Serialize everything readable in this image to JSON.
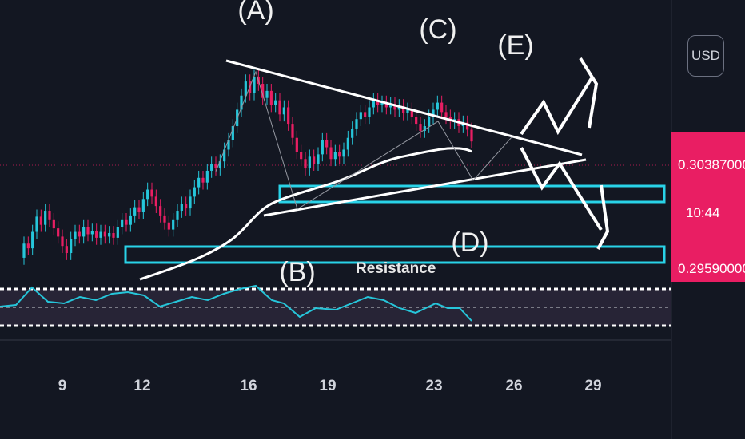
{
  "chart_data": {
    "type": "candlestick",
    "x_ticks": [
      "9",
      "12",
      "16",
      "19",
      "23",
      "26",
      "29"
    ],
    "price_axis": {
      "current_price": "0.30387000",
      "countdown": "10:44",
      "low_price": "0.29590000",
      "currency": "USD"
    },
    "wave_labels": [
      "(A)",
      "(B)",
      "(C)",
      "(D)",
      "(E)"
    ],
    "annotations": [
      "Resistance"
    ],
    "colors": {
      "up": "#26c6da",
      "down": "#e91e63",
      "oscillator": "#26c6da",
      "zones": "#29d3e8",
      "drawings": "#ffffff"
    },
    "candles": [
      {
        "o": 0.294,
        "c": 0.2952
      },
      {
        "o": 0.2952,
        "c": 0.2948
      },
      {
        "o": 0.2948,
        "c": 0.2962
      },
      {
        "o": 0.2962,
        "c": 0.2975
      },
      {
        "o": 0.2975,
        "c": 0.2968
      },
      {
        "o": 0.2968,
        "c": 0.298
      },
      {
        "o": 0.298,
        "c": 0.2972
      },
      {
        "o": 0.2972,
        "c": 0.2965
      },
      {
        "o": 0.2965,
        "c": 0.2958
      },
      {
        "o": 0.2958,
        "c": 0.295
      },
      {
        "o": 0.295,
        "c": 0.2944
      },
      {
        "o": 0.2944,
        "c": 0.2956
      },
      {
        "o": 0.2956,
        "c": 0.2962
      },
      {
        "o": 0.2962,
        "c": 0.2958
      },
      {
        "o": 0.2958,
        "c": 0.2966
      },
      {
        "o": 0.2966,
        "c": 0.296
      },
      {
        "o": 0.296,
        "c": 0.2963
      },
      {
        "o": 0.2963,
        "c": 0.2957
      },
      {
        "o": 0.2957,
        "c": 0.2962
      },
      {
        "o": 0.2962,
        "c": 0.2958
      },
      {
        "o": 0.2958,
        "c": 0.2961
      },
      {
        "o": 0.2961,
        "c": 0.2957
      },
      {
        "o": 0.2957,
        "c": 0.2966
      },
      {
        "o": 0.2966,
        "c": 0.2972
      },
      {
        "o": 0.2972,
        "c": 0.2968
      },
      {
        "o": 0.2968,
        "c": 0.2976
      },
      {
        "o": 0.2976,
        "c": 0.2983
      },
      {
        "o": 0.2983,
        "c": 0.2979
      },
      {
        "o": 0.2979,
        "c": 0.299
      },
      {
        "o": 0.299,
        "c": 0.2998
      },
      {
        "o": 0.2998,
        "c": 0.2992
      },
      {
        "o": 0.2992,
        "c": 0.2984
      },
      {
        "o": 0.2984,
        "c": 0.2976
      },
      {
        "o": 0.2976,
        "c": 0.297
      },
      {
        "o": 0.297,
        "c": 0.2964
      },
      {
        "o": 0.2964,
        "c": 0.2972
      },
      {
        "o": 0.2972,
        "c": 0.298
      },
      {
        "o": 0.298,
        "c": 0.2986
      },
      {
        "o": 0.2986,
        "c": 0.2982
      },
      {
        "o": 0.2982,
        "c": 0.2992
      },
      {
        "o": 0.2992,
        "c": 0.3
      },
      {
        "o": 0.3,
        "c": 0.3008
      },
      {
        "o": 0.3008,
        "c": 0.3004
      },
      {
        "o": 0.3004,
        "c": 0.3014
      },
      {
        "o": 0.3014,
        "c": 0.302
      },
      {
        "o": 0.302,
        "c": 0.3016
      },
      {
        "o": 0.3016,
        "c": 0.3022
      },
      {
        "o": 0.3022,
        "c": 0.3032
      },
      {
        "o": 0.3032,
        "c": 0.304
      },
      {
        "o": 0.304,
        "c": 0.3052
      },
      {
        "o": 0.3052,
        "c": 0.3066
      },
      {
        "o": 0.3066,
        "c": 0.3078
      },
      {
        "o": 0.3078,
        "c": 0.309
      },
      {
        "o": 0.309,
        "c": 0.308
      },
      {
        "o": 0.308,
        "c": 0.3094
      },
      {
        "o": 0.3094,
        "c": 0.3088
      },
      {
        "o": 0.3088,
        "c": 0.3076
      },
      {
        "o": 0.3076,
        "c": 0.3082
      },
      {
        "o": 0.3082,
        "c": 0.307
      },
      {
        "o": 0.307,
        "c": 0.3074
      },
      {
        "o": 0.3074,
        "c": 0.3062
      },
      {
        "o": 0.3062,
        "c": 0.3068
      },
      {
        "o": 0.3068,
        "c": 0.3054
      },
      {
        "o": 0.3054,
        "c": 0.3042
      },
      {
        "o": 0.3042,
        "c": 0.303
      },
      {
        "o": 0.303,
        "c": 0.3024
      },
      {
        "o": 0.3024,
        "c": 0.3016
      },
      {
        "o": 0.3016,
        "c": 0.3026
      },
      {
        "o": 0.3026,
        "c": 0.302
      },
      {
        "o": 0.302,
        "c": 0.3028
      },
      {
        "o": 0.3028,
        "c": 0.304
      },
      {
        "o": 0.304,
        "c": 0.3034
      },
      {
        "o": 0.3034,
        "c": 0.3024
      },
      {
        "o": 0.3024,
        "c": 0.303
      },
      {
        "o": 0.303,
        "c": 0.3026
      },
      {
        "o": 0.3026,
        "c": 0.3032
      },
      {
        "o": 0.3032,
        "c": 0.3042
      },
      {
        "o": 0.3042,
        "c": 0.305
      },
      {
        "o": 0.305,
        "c": 0.3058
      },
      {
        "o": 0.3058,
        "c": 0.3064
      },
      {
        "o": 0.3064,
        "c": 0.306
      },
      {
        "o": 0.306,
        "c": 0.3068
      },
      {
        "o": 0.3068,
        "c": 0.3074
      },
      {
        "o": 0.3074,
        "c": 0.307
      },
      {
        "o": 0.307,
        "c": 0.3072
      },
      {
        "o": 0.3072,
        "c": 0.3068
      },
      {
        "o": 0.3068,
        "c": 0.3071
      },
      {
        "o": 0.3071,
        "c": 0.3066
      },
      {
        "o": 0.3066,
        "c": 0.3069
      },
      {
        "o": 0.3069,
        "c": 0.3063
      },
      {
        "o": 0.3063,
        "c": 0.3066
      },
      {
        "o": 0.3066,
        "c": 0.306
      },
      {
        "o": 0.306,
        "c": 0.3054
      },
      {
        "o": 0.3054,
        "c": 0.3048
      },
      {
        "o": 0.3048,
        "c": 0.3052
      },
      {
        "o": 0.3052,
        "c": 0.306
      },
      {
        "o": 0.306,
        "c": 0.3066
      },
      {
        "o": 0.3066,
        "c": 0.3072
      },
      {
        "o": 0.3072,
        "c": 0.3064
      },
      {
        "o": 0.3064,
        "c": 0.306
      },
      {
        "o": 0.306,
        "c": 0.3056
      },
      {
        "o": 0.3056,
        "c": 0.3058
      },
      {
        "o": 0.3058,
        "c": 0.3052
      },
      {
        "o": 0.3052,
        "c": 0.3055
      },
      {
        "o": 0.3055,
        "c": 0.3049
      },
      {
        "o": 0.3049,
        "c": 0.3039
      }
    ]
  }
}
